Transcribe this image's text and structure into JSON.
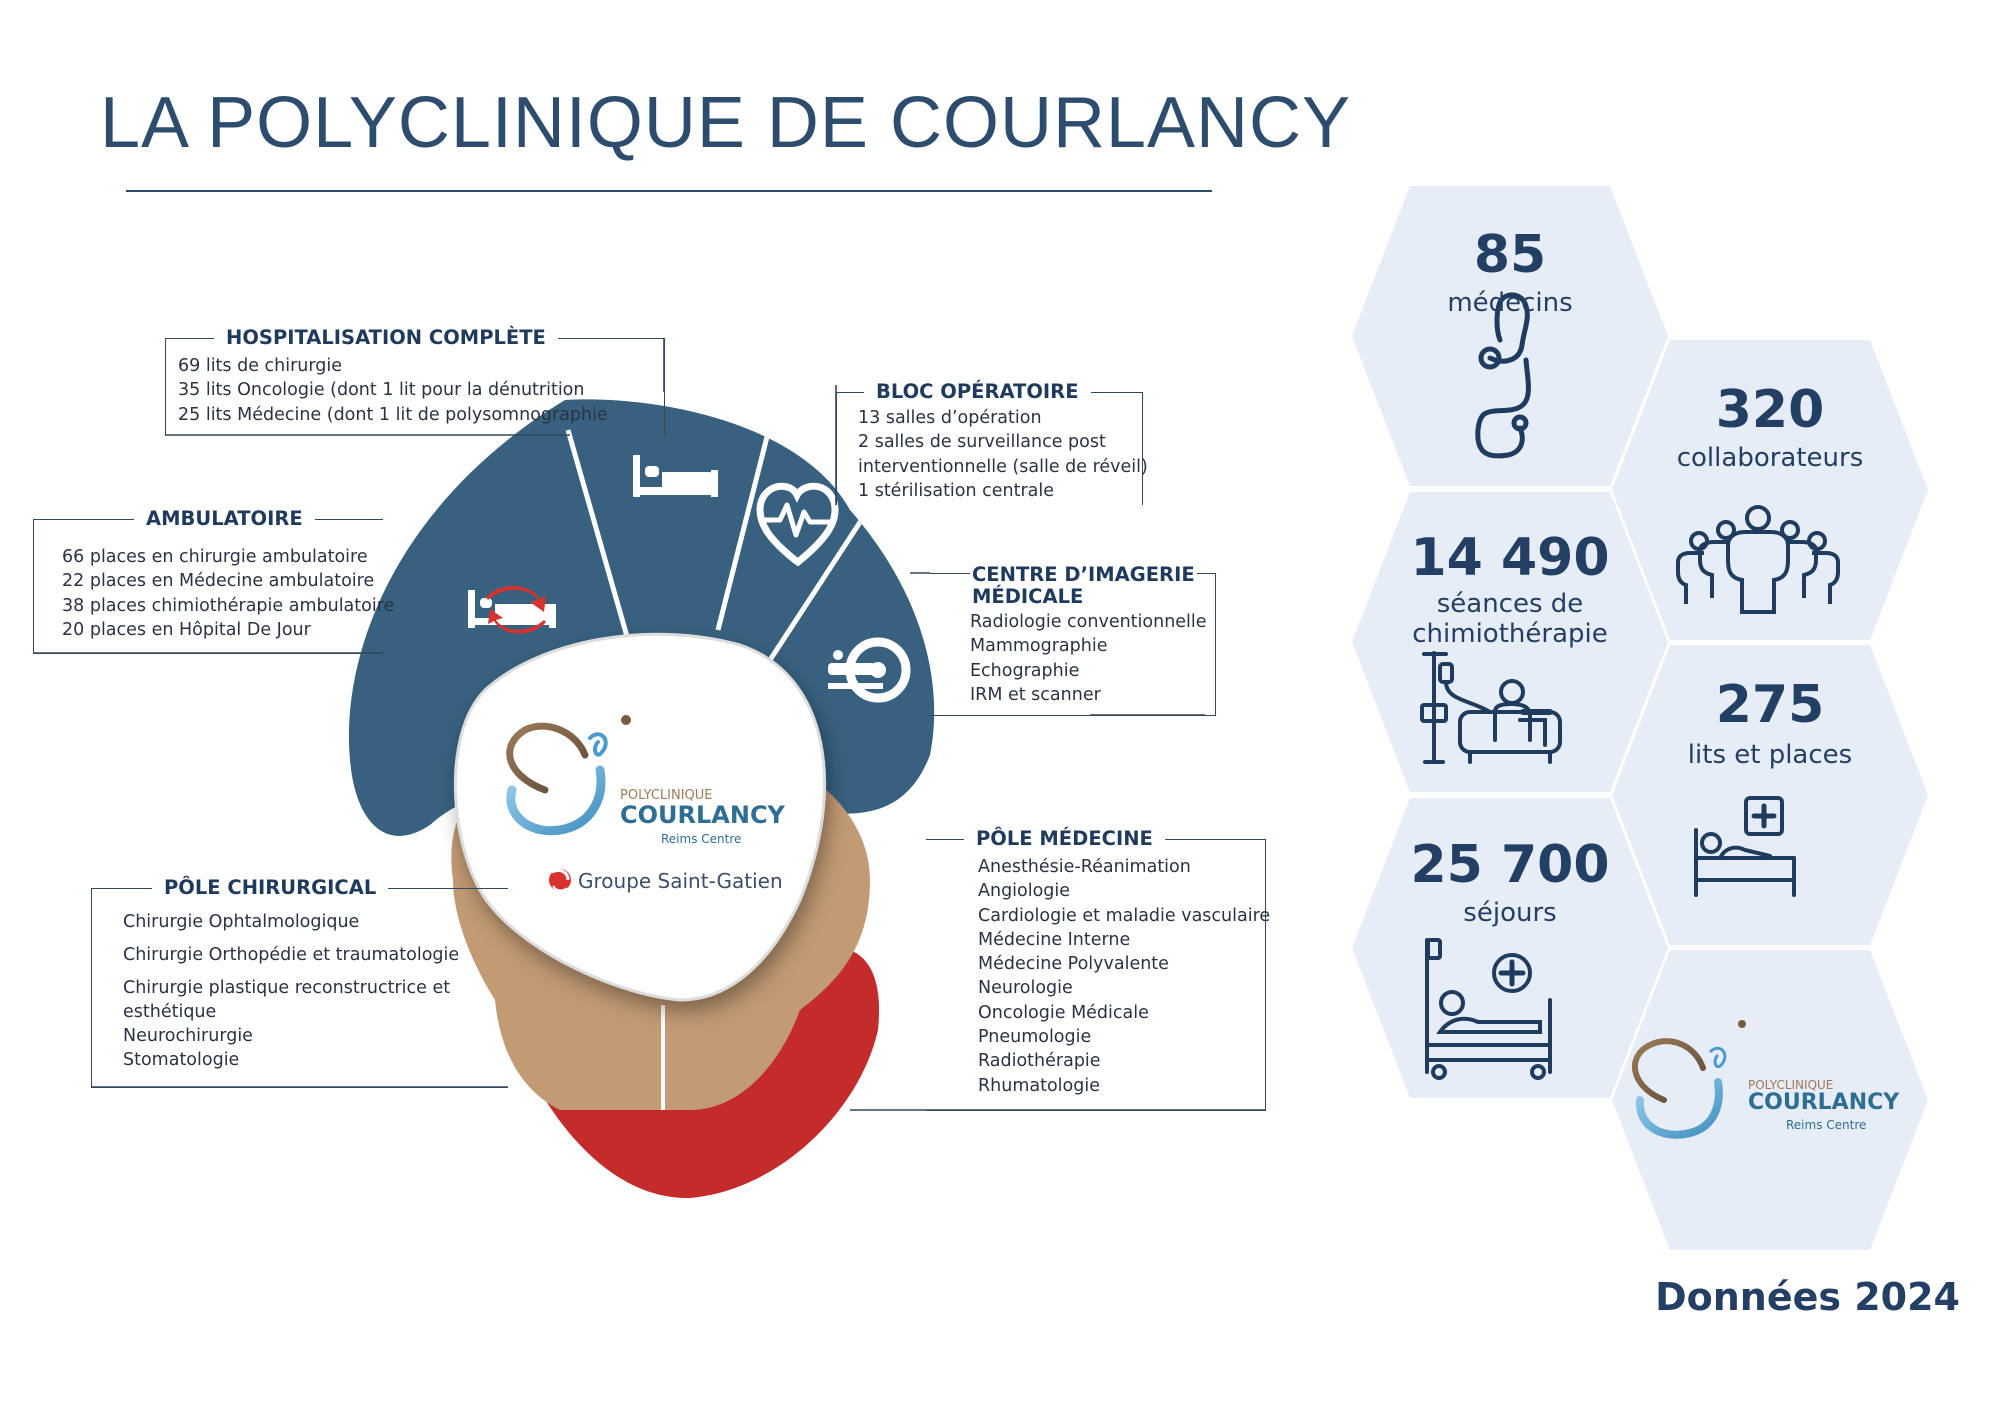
{
  "title": "LA POLYCLINIQUE DE COURLANCY",
  "footer": "Données 2024",
  "logo": {
    "small": "POLYCLINIQUE",
    "name": "COURLANCY",
    "sub": "Reims Centre",
    "group": "Groupe Saint-Gatien"
  },
  "colors": {
    "dark_blue": "#37617f",
    "tan": "#c29a74",
    "red": "#c32c2a",
    "title_blue": "#2e4d6e",
    "hex_fill": "#e6edf6",
    "stat_text": "#243f64"
  },
  "sections": {
    "hospitalisation": {
      "title": "HOSPITALISATION COMPLÈTE",
      "items": [
        "69 lits de chirurgie",
        "35 lits Oncologie (dont 1 lit pour la dénutrition",
        "25 lits Médecine (dont 1 lit de polysomnographie"
      ]
    },
    "bloc": {
      "title": "BLOC OPÉRATOIRE",
      "items": [
        "13 salles d’opération",
        "2 salles de surveillance post",
        "interventionnelle (salle de réveil)",
        "1 stérilisation centrale"
      ]
    },
    "ambulatoire": {
      "title": "AMBULATOIRE",
      "items": [
        "66 places en chirurgie ambulatoire",
        "22 places en Médecine ambulatoire",
        "38 places chimiothérapie ambulatoire",
        "20 places en Hôpital De Jour"
      ]
    },
    "imagerie": {
      "title_line1": "CENTRE D’IMAGERIE",
      "title_line2": "MÉDICALE",
      "items": [
        "Radiologie conventionnelle",
        "Mammographie",
        "Echographie",
        "IRM et scanner"
      ]
    },
    "chirurgical": {
      "title": "PÔLE CHIRURGICAL",
      "items": [
        "Chirurgie Ophtalmologique",
        "Chirurgie Orthopédie et traumatologie",
        "Chirurgie plastique reconstructrice et",
        "esthétique",
        "Neurochirurgie",
        "Stomatologie"
      ]
    },
    "medecine": {
      "title": "PÔLE MÉDECINE",
      "items": [
        "Anesthésie-Réanimation",
        "Angiologie",
        "Cardiologie et maladie vasculaire",
        "Médecine Interne",
        "Médecine Polyvalente",
        "Neurologie",
        "Oncologie Médicale",
        "Pneumologie",
        "Radiothérapie",
        "Rhumatologie"
      ]
    }
  },
  "stats": {
    "medecins": {
      "value": "85",
      "label": "médecins",
      "icon": "stethoscope-icon"
    },
    "collaborateurs": {
      "value": "320",
      "label": "collaborateurs",
      "icon": "people-group-icon"
    },
    "seances": {
      "value": "14 490",
      "label1": "séances de",
      "label2": "chimiothérapie",
      "icon": "chemotherapy-chair-icon"
    },
    "lits": {
      "value": "275",
      "label": "lits et places",
      "icon": "bed-cross-icon"
    },
    "sejours": {
      "value": "25 700",
      "label": "séjours",
      "icon": "hospital-bed-icon"
    }
  }
}
